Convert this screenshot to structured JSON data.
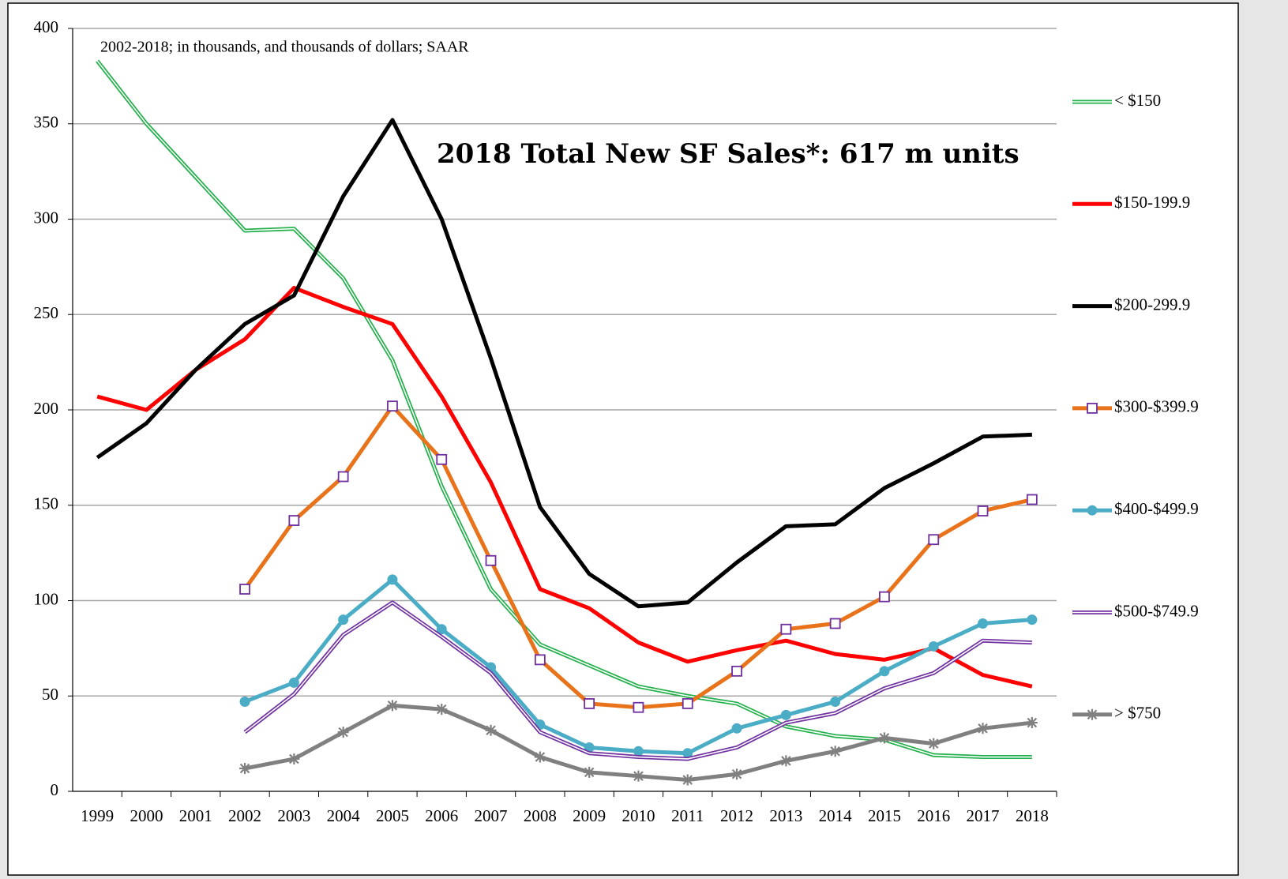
{
  "chart_data": {
    "type": "line",
    "subtitle": "2002-2018; in thousands, and thousands of dollars; SAAR",
    "annotation": "2018 Total New SF Sales*: 617 m units",
    "categories": [
      "1999",
      "2000",
      "2001",
      "2002",
      "2003",
      "2004",
      "2005",
      "2006",
      "2007",
      "2008",
      "2009",
      "2010",
      "2011",
      "2012",
      "2013",
      "2014",
      "2015",
      "2016",
      "2017",
      "2018"
    ],
    "ylim": [
      0,
      400
    ],
    "yticks": [
      0,
      50,
      100,
      150,
      200,
      250,
      300,
      350,
      400
    ],
    "grid": true,
    "legend": "right",
    "series": [
      {
        "name": "< $150",
        "color": "#22b04a",
        "line_style": "double",
        "values": [
          383,
          350,
          322,
          294,
          295,
          269,
          226,
          160,
          106,
          77,
          66,
          55,
          50,
          46,
          34,
          29,
          27,
          19,
          18,
          18
        ]
      },
      {
        "name": "$150-199.9",
        "color": "#ff0000",
        "values": [
          207,
          200,
          221,
          237,
          264,
          254,
          245,
          207,
          162,
          106,
          96,
          78,
          68,
          74,
          79,
          72,
          69,
          75,
          61,
          55
        ]
      },
      {
        "name": "$200-299.9",
        "color": "#000000",
        "values": [
          175,
          193,
          221,
          245,
          260,
          312,
          352,
          300,
          227,
          149,
          114,
          97,
          99,
          120,
          139,
          140,
          159,
          172,
          186,
          187
        ]
      },
      {
        "name": "$300-$399.9",
        "color": "#e8731a",
        "marker": "square",
        "marker_color": "#7030a0",
        "values": [
          null,
          null,
          null,
          106,
          142,
          165,
          202,
          174,
          121,
          69,
          46,
          44,
          46,
          63,
          85,
          88,
          102,
          132,
          147,
          153
        ]
      },
      {
        "name": "$400-$499.9",
        "color": "#4bacc6",
        "marker": "circle",
        "marker_color": "#4bacc6",
        "values": [
          null,
          null,
          null,
          47,
          57,
          90,
          111,
          85,
          65,
          35,
          23,
          21,
          20,
          33,
          40,
          47,
          63,
          76,
          88,
          90
        ]
      },
      {
        "name": "$500-$749.9",
        "color": "#7030a0",
        "line_style": "double",
        "values": [
          null,
          null,
          null,
          31,
          51,
          82,
          99,
          81,
          62,
          31,
          20,
          18,
          17,
          23,
          36,
          41,
          54,
          62,
          79,
          78
        ]
      },
      {
        "name": "> $750",
        "color": "#808080",
        "marker": "asterisk",
        "marker_color": "#808080",
        "values": [
          null,
          null,
          null,
          12,
          17,
          31,
          45,
          43,
          32,
          18,
          10,
          8,
          6,
          9,
          16,
          21,
          28,
          25,
          33,
          36
        ]
      }
    ]
  }
}
